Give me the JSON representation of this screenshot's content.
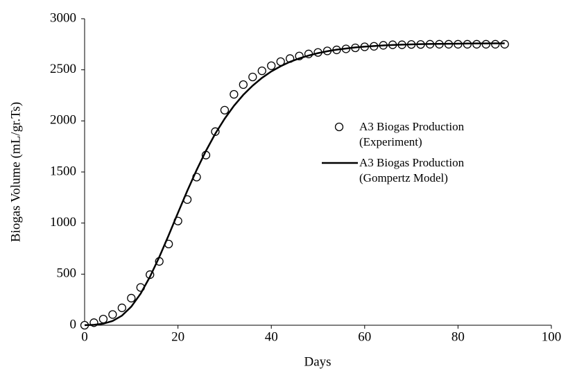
{
  "chart_data": {
    "type": "scatter-line",
    "x_label": "Days",
    "y_label": "Biogas Volume (mL/gr.Ts)",
    "xlim": [
      0,
      100
    ],
    "ylim": [
      0,
      3000
    ],
    "xticks": [
      0,
      20,
      40,
      60,
      80,
      100
    ],
    "yticks": [
      0,
      500,
      1000,
      1500,
      2000,
      2500,
      3000
    ],
    "grid": false,
    "legend": "right",
    "x": [
      0,
      2,
      4,
      6,
      8,
      10,
      12,
      14,
      16,
      18,
      20,
      22,
      24,
      26,
      28,
      30,
      32,
      34,
      36,
      38,
      40,
      42,
      44,
      46,
      48,
      50,
      52,
      54,
      56,
      58,
      60,
      62,
      64,
      66,
      68,
      70,
      72,
      74,
      76,
      78,
      80,
      82,
      84,
      86,
      88,
      90
    ],
    "series": [
      {
        "name": "A3 Biogas Production (Experiment)",
        "style": "marker",
        "color": "#000000",
        "values": [
          0,
          25,
          60,
          105,
          170,
          265,
          370,
          495,
          625,
          795,
          1020,
          1230,
          1450,
          1665,
          1895,
          2105,
          2260,
          2355,
          2430,
          2490,
          2540,
          2580,
          2610,
          2635,
          2655,
          2670,
          2685,
          2695,
          2705,
          2715,
          2725,
          2730,
          2740,
          2745,
          2745,
          2748,
          2748,
          2750,
          2750,
          2750,
          2750,
          2750,
          2750,
          2750,
          2750,
          2750
        ]
      },
      {
        "name": "A3 Biogas Production (Gompertz Model)",
        "style": "line",
        "color": "#000000",
        "values": [
          1,
          4,
          15,
          42,
          94,
          182,
          309,
          474,
          668,
          880,
          1100,
          1316,
          1519,
          1707,
          1875,
          2021,
          2148,
          2255,
          2345,
          2421,
          2484,
          2535,
          2578,
          2612,
          2640,
          2663,
          2682,
          2697,
          2708,
          2719,
          2727,
          2733,
          2739,
          2743,
          2746,
          2749,
          2751,
          2753,
          2754,
          2755,
          2756,
          2757,
          2758,
          2758,
          2759,
          2759
        ]
      }
    ]
  }
}
